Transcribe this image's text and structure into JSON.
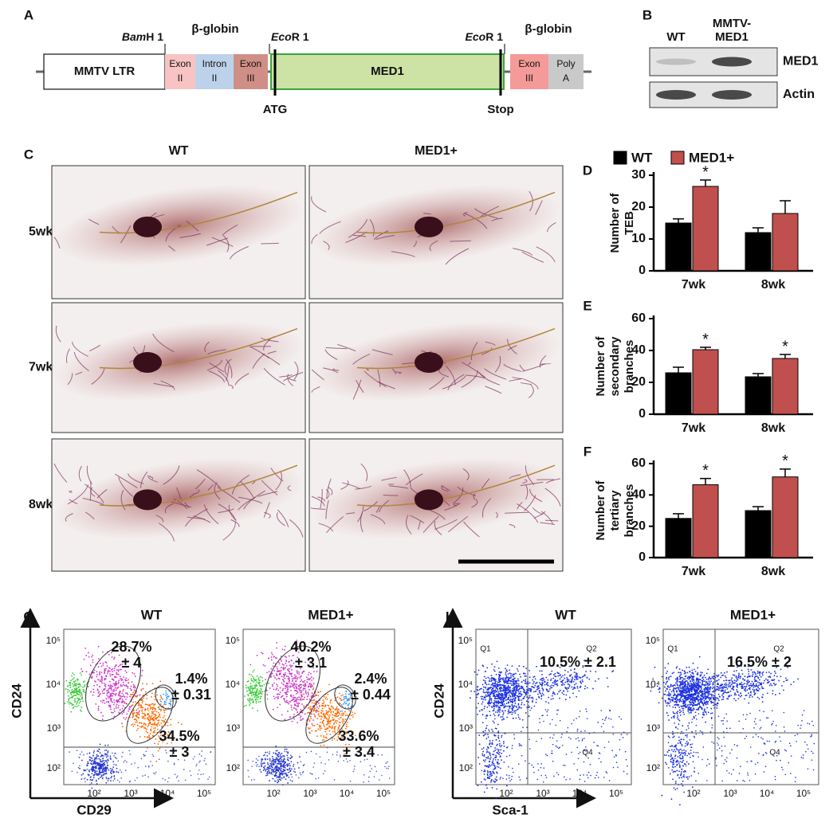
{
  "panel_labels": [
    "A",
    "B",
    "C",
    "D",
    "E",
    "F",
    "G",
    "H"
  ],
  "construct": {
    "segments": [
      [
        "MMTV LTR"
      ],
      [
        "Exon",
        "II"
      ],
      [
        "Intron",
        "II"
      ],
      [
        "Exon",
        "III"
      ],
      [
        "MED1"
      ],
      [
        "Exon",
        "III"
      ],
      [
        "Poly",
        "A"
      ]
    ],
    "beta_globin": [
      "β-globin",
      "β-globin"
    ],
    "sites": [
      [
        "Bam",
        "H 1"
      ],
      [
        "Eco",
        "R 1"
      ],
      [
        "Eco",
        "R 1"
      ]
    ],
    "codons": [
      "ATG",
      "Stop"
    ]
  },
  "blot": {
    "lanes": [
      [
        "WT"
      ],
      [
        "MMTV-",
        "MED1"
      ]
    ],
    "proteins": [
      "MED1",
      "Actin"
    ]
  },
  "wholemount": {
    "columns": [
      "WT",
      "MED1+"
    ],
    "rows": [
      "5wk",
      "7wk",
      "8wk"
    ]
  },
  "chart_data": [
    {
      "type": "bar",
      "ylabel": [
        "Number of",
        "TEB"
      ],
      "categories": [
        "7wk",
        "8wk"
      ],
      "ylim": [
        0,
        30
      ],
      "yticks": [
        0,
        10,
        20,
        30
      ],
      "series": [
        {
          "name": "WT",
          "color": "#000000",
          "values": [
            15,
            12
          ],
          "errors": [
            1.3,
            1.5
          ]
        },
        {
          "name": "MED1+",
          "color": "#c0504d",
          "values": [
            26.5,
            18
          ],
          "errors": [
            2,
            4
          ],
          "annotations": [
            "*",
            null
          ]
        }
      ]
    },
    {
      "type": "bar",
      "ylabel": [
        "Number of",
        "secondary",
        "branches"
      ],
      "categories": [
        "7wk",
        "8wk"
      ],
      "ylim": [
        0,
        60
      ],
      "yticks": [
        0,
        20,
        40,
        60
      ],
      "series": [
        {
          "color": "#000000",
          "values": [
            26,
            23.5
          ],
          "errors": [
            3.5,
            2
          ]
        },
        {
          "color": "#c0504d",
          "values": [
            40.5,
            35
          ],
          "errors": [
            1.5,
            2.5
          ],
          "annotations": [
            "*",
            "*"
          ]
        }
      ]
    },
    {
      "type": "bar",
      "ylabel": [
        "Number of",
        "tertiary",
        "branches"
      ],
      "categories": [
        "7wk",
        "8wk"
      ],
      "ylim": [
        0,
        60
      ],
      "yticks": [
        0,
        20,
        40,
        60
      ],
      "series": [
        {
          "color": "#000000",
          "values": [
            25,
            30
          ],
          "errors": [
            3,
            2.5
          ]
        },
        {
          "color": "#c0504d",
          "values": [
            46.5,
            51.5
          ],
          "errors": [
            4,
            5
          ],
          "annotations": [
            "*",
            "*"
          ]
        }
      ]
    }
  ],
  "flow": [
    {
      "xlabel": "CD29",
      "ylabel": "CD24",
      "ticks": [
        "10²",
        "10³",
        "10⁴",
        "10⁵"
      ],
      "plots": [
        {
          "title": "WT",
          "gates": [
            [
              "28.7%",
              "± 4"
            ],
            [
              "1.4%",
              "± 0.31"
            ],
            [
              "34.5%",
              "± 3"
            ]
          ]
        },
        {
          "title": "MED1+",
          "gates": [
            [
              "40.2%",
              "± 3.1"
            ],
            [
              "2.4%",
              "± 0.44"
            ],
            [
              "33.6%",
              "± 3.4"
            ]
          ]
        }
      ]
    },
    {
      "xlabel": "Sca-1",
      "ylabel": "CD24",
      "ticks": [
        "10²",
        "10³",
        "10⁴",
        "10⁵"
      ],
      "quadrants": [
        "Q1",
        "Q2",
        "Q4"
      ],
      "plots": [
        {
          "title": "WT",
          "gates": [
            [
              "10.5% ± 2.1"
            ]
          ]
        },
        {
          "title": "MED1+",
          "gates": [
            [
              "16.5% ± 2"
            ]
          ]
        }
      ]
    }
  ]
}
